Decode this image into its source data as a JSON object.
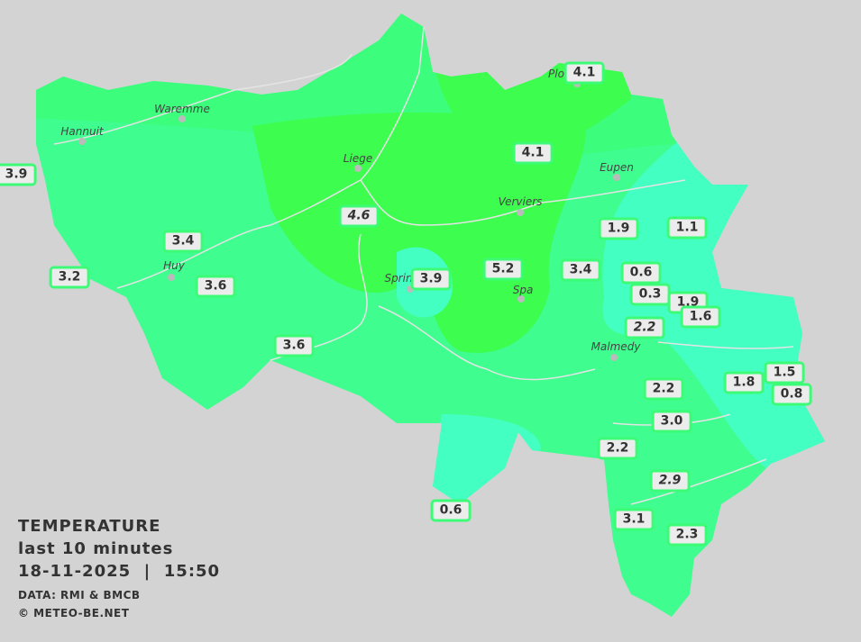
{
  "legend": {
    "title": "TEMPERATURE",
    "period": "last 10 minutes",
    "datetime": "18-11-2025  |  15:50",
    "source": "DATA: RMI & BMCB",
    "credit": "© METEO-BE.NET"
  },
  "colors": {
    "background": "#d3d3d3",
    "zone_4_5": "#3dfd4f",
    "zone_3_4": "#3dfd7c",
    "zone_2_3": "#3ffd8e",
    "zone_0_2": "#44ffc2",
    "border": "#3dfb77"
  },
  "cities": [
    {
      "name": "Waremme"
    },
    {
      "name": "Hannuit"
    },
    {
      "name": "Liege"
    },
    {
      "name": "Eupen"
    },
    {
      "name": "Verviers"
    },
    {
      "name": "Huy"
    },
    {
      "name": "Sprin"
    },
    {
      "name": "Spa"
    },
    {
      "name": "Malmedy"
    },
    {
      "name": "Plo"
    }
  ],
  "stations": [
    "4.1",
    "4.1",
    "3.9",
    "4.6",
    "1.9",
    "1.1",
    "3.4",
    "3.2",
    "5.2",
    "3.4",
    "0.6",
    "3.9",
    "3.6",
    "0.3",
    "1.9",
    "1.6",
    "2.2",
    "3.6",
    "1.5",
    "1.8",
    "0.8",
    "2.2",
    "3.0",
    "2.2",
    "2.9",
    "0.6",
    "3.1",
    "2.3"
  ]
}
